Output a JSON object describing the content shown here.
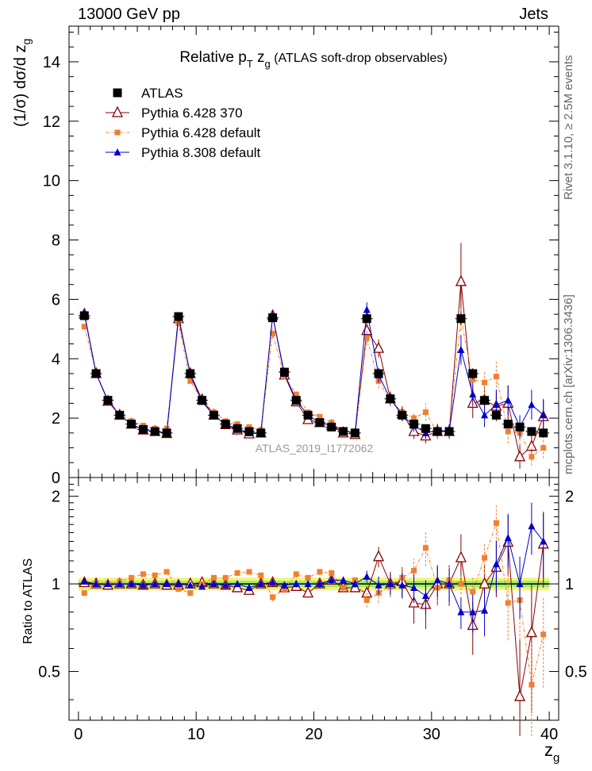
{
  "header": {
    "left": "13000 GeV pp",
    "right": "Jets"
  },
  "side_text": {
    "top": "Rivet 3.1.10, ≥ 2.5M events",
    "bottom": "mcplots.cern.ch [arXiv:1306.3436]"
  },
  "watermark": "ATLAS_2019_I1772062",
  "chart_data": {
    "type": "scatter",
    "title": "Relative p_T z_g (ATLAS soft-drop observables)",
    "title_parts": {
      "main": "Relative p",
      "sub1": "T",
      "mid": " z",
      "sub2": "g",
      "tail": " (ATLAS soft-drop observables)"
    },
    "xlabel": "z_g",
    "xlabel_parts": {
      "main": "z",
      "sub": "g"
    },
    "ylabel": "(1/σ) dσ/d z_g",
    "ylabel_parts": {
      "main": "(1/σ) dσ/d z",
      "sub": "g"
    },
    "ratio_ylabel": "Ratio to ATLAS",
    "xlim": [
      -0.8,
      40.8
    ],
    "ylim": [
      0,
      15.2
    ],
    "ratio_ylim": [
      0.34,
      2.32
    ],
    "x_ticks": [
      "0",
      "10",
      "20",
      "30",
      "40"
    ],
    "y_ticks": [
      "0",
      "2",
      "4",
      "6",
      "8",
      "10",
      "12",
      "14"
    ],
    "ratio_ticks": [
      "0.5",
      "1",
      "2"
    ],
    "x": [
      0.5,
      1.5,
      2.5,
      3.5,
      4.5,
      5.5,
      6.5,
      7.5,
      8.5,
      9.5,
      10.5,
      11.5,
      12.5,
      13.5,
      14.5,
      15.5,
      16.5,
      17.5,
      18.5,
      19.5,
      20.5,
      21.5,
      22.5,
      23.5,
      24.5,
      25.5,
      26.5,
      27.5,
      28.5,
      29.5,
      30.5,
      31.5,
      32.5,
      33.5,
      34.5,
      35.5,
      36.5,
      37.5,
      38.5,
      39.5
    ],
    "series": [
      {
        "name": "ATLAS",
        "color": "#000000",
        "marker": "square",
        "values": [
          5.45,
          3.5,
          2.6,
          2.1,
          1.8,
          1.62,
          1.55,
          1.5,
          5.42,
          3.5,
          2.6,
          2.1,
          1.8,
          1.65,
          1.55,
          1.5,
          5.38,
          3.55,
          2.6,
          2.1,
          1.85,
          1.7,
          1.55,
          1.5,
          5.35,
          3.5,
          2.65,
          2.1,
          1.8,
          1.65,
          1.55,
          1.55,
          5.35,
          3.5,
          2.6,
          2.1,
          1.8,
          1.7,
          1.55,
          1.5
        ],
        "errors": [
          0.05,
          0.05,
          0.04,
          0.04,
          0.04,
          0.04,
          0.04,
          0.04,
          0.06,
          0.05,
          0.05,
          0.04,
          0.04,
          0.04,
          0.04,
          0.04,
          0.08,
          0.06,
          0.05,
          0.05,
          0.05,
          0.05,
          0.05,
          0.05,
          0.12,
          0.1,
          0.08,
          0.08,
          0.08,
          0.08,
          0.08,
          0.08,
          0.2,
          0.18,
          0.15,
          0.15,
          0.15,
          0.15,
          0.15,
          0.15
        ]
      },
      {
        "name": "Pythia 6.428 370",
        "color": "#8b0000",
        "marker": "open-triangle",
        "values": [
          5.5,
          3.5,
          2.57,
          2.1,
          1.8,
          1.6,
          1.55,
          1.48,
          5.35,
          3.5,
          2.62,
          2.1,
          1.78,
          1.6,
          1.47,
          1.5,
          5.45,
          3.45,
          2.55,
          1.95,
          1.85,
          1.75,
          1.5,
          1.45,
          4.95,
          4.35,
          2.65,
          2.15,
          1.55,
          1.4,
          1.55,
          1.55,
          6.6,
          2.5,
          2.6,
          2.4,
          2.5,
          0.7,
          1.05,
          2.05
        ],
        "errors": [
          0.04,
          0.04,
          0.04,
          0.04,
          0.04,
          0.04,
          0.04,
          0.04,
          0.08,
          0.06,
          0.05,
          0.05,
          0.05,
          0.05,
          0.05,
          0.05,
          0.15,
          0.1,
          0.1,
          0.08,
          0.08,
          0.08,
          0.08,
          0.08,
          0.25,
          0.3,
          0.25,
          0.25,
          0.25,
          0.25,
          0.25,
          0.25,
          1.3,
          0.5,
          0.45,
          0.5,
          0.6,
          0.4,
          0.5,
          0.6
        ]
      },
      {
        "name": "Pythia 6.428 default",
        "color": "#f08030",
        "marker": "square",
        "values": [
          5.08,
          3.52,
          2.6,
          2.15,
          1.9,
          1.75,
          1.65,
          1.65,
          5.2,
          3.25,
          2.6,
          2.2,
          1.9,
          1.8,
          1.7,
          1.6,
          4.85,
          3.4,
          2.8,
          2.2,
          2.05,
          1.85,
          1.5,
          1.55,
          4.7,
          3.25,
          2.6,
          2.2,
          2.0,
          2.2,
          1.5,
          1.6,
          5.35,
          3.3,
          3.2,
          3.4,
          1.55,
          1.5,
          0.7,
          1.0
        ],
        "errors": [
          0.04,
          0.04,
          0.04,
          0.04,
          0.04,
          0.04,
          0.04,
          0.04,
          0.08,
          0.06,
          0.05,
          0.05,
          0.05,
          0.05,
          0.05,
          0.05,
          0.15,
          0.1,
          0.1,
          0.08,
          0.08,
          0.08,
          0.08,
          0.08,
          0.25,
          0.25,
          0.2,
          0.2,
          0.2,
          0.3,
          0.2,
          0.2,
          0.4,
          0.4,
          0.4,
          0.5,
          0.4,
          0.4,
          0.3,
          0.35
        ]
      },
      {
        "name": "Pythia 8.308 default",
        "color": "#0000cc",
        "marker": "filled-triangle",
        "values": [
          5.55,
          3.5,
          2.6,
          2.1,
          1.8,
          1.6,
          1.55,
          1.5,
          5.45,
          3.45,
          2.55,
          2.1,
          1.78,
          1.65,
          1.5,
          1.5,
          5.45,
          3.5,
          2.6,
          2.1,
          1.85,
          1.75,
          1.6,
          1.5,
          5.65,
          3.45,
          2.65,
          2.1,
          1.75,
          1.5,
          1.6,
          1.55,
          4.3,
          2.8,
          2.1,
          2.45,
          2.6,
          1.7,
          2.45,
          2.1
        ],
        "errors": [
          0.04,
          0.04,
          0.04,
          0.04,
          0.04,
          0.04,
          0.04,
          0.04,
          0.08,
          0.06,
          0.05,
          0.05,
          0.05,
          0.05,
          0.05,
          0.05,
          0.15,
          0.1,
          0.1,
          0.08,
          0.08,
          0.08,
          0.08,
          0.08,
          0.25,
          0.25,
          0.2,
          0.2,
          0.2,
          0.2,
          0.2,
          0.2,
          0.5,
          0.4,
          0.4,
          0.5,
          0.5,
          0.4,
          0.5,
          0.5
        ]
      }
    ],
    "ratio": {
      "band_inner": 0.025,
      "band_outer": 0.05,
      "series": [
        {
          "name": "Pythia 6.428 370",
          "values": [
            1.01,
            1.0,
            0.99,
            1.0,
            1.0,
            0.99,
            1.0,
            0.99,
            0.99,
            1.0,
            1.01,
            1.0,
            0.99,
            0.97,
            0.95,
            1.0,
            1.01,
            0.97,
            0.98,
            0.93,
            1.0,
            1.03,
            0.97,
            0.97,
            0.93,
            1.24,
            1.0,
            1.02,
            0.86,
            0.85,
            1.0,
            1.0,
            1.23,
            0.72,
            1.0,
            1.14,
            1.39,
            0.41,
            0.68,
            1.37
          ],
          "errors": [
            0.01,
            0.01,
            0.01,
            0.01,
            0.01,
            0.01,
            0.01,
            0.01,
            0.02,
            0.02,
            0.02,
            0.02,
            0.02,
            0.02,
            0.02,
            0.02,
            0.03,
            0.03,
            0.03,
            0.03,
            0.03,
            0.03,
            0.03,
            0.03,
            0.05,
            0.1,
            0.1,
            0.12,
            0.13,
            0.15,
            0.15,
            0.16,
            0.25,
            0.15,
            0.17,
            0.24,
            0.33,
            0.24,
            0.32,
            0.4
          ]
        },
        {
          "name": "Pythia 6.428 default",
          "values": [
            0.93,
            1.0,
            1.0,
            1.02,
            1.05,
            1.08,
            1.07,
            1.1,
            0.96,
            0.93,
            1.0,
            1.05,
            1.05,
            1.09,
            1.1,
            1.07,
            0.9,
            0.96,
            1.08,
            1.05,
            1.1,
            1.09,
            0.97,
            1.03,
            0.88,
            0.93,
            0.98,
            1.05,
            1.11,
            1.33,
            0.97,
            1.03,
            1.0,
            0.94,
            1.23,
            1.62,
            0.86,
            0.88,
            0.45,
            0.67
          ],
          "errors": [
            0.01,
            0.01,
            0.01,
            0.01,
            0.01,
            0.01,
            0.01,
            0.01,
            0.02,
            0.02,
            0.02,
            0.02,
            0.02,
            0.02,
            0.02,
            0.02,
            0.03,
            0.03,
            0.03,
            0.03,
            0.03,
            0.03,
            0.03,
            0.03,
            0.05,
            0.07,
            0.08,
            0.1,
            0.11,
            0.18,
            0.13,
            0.13,
            0.08,
            0.11,
            0.15,
            0.24,
            0.22,
            0.24,
            0.19,
            0.23
          ]
        },
        {
          "name": "Pythia 8.308 default",
          "values": [
            1.02,
            1.0,
            1.0,
            1.0,
            1.0,
            0.99,
            1.0,
            1.0,
            1.0,
            0.99,
            0.98,
            1.0,
            0.99,
            1.0,
            0.97,
            1.0,
            1.01,
            0.99,
            1.0,
            1.0,
            1.0,
            1.03,
            1.03,
            1.0,
            1.06,
            0.99,
            1.0,
            0.99,
            0.97,
            0.91,
            1.03,
            1.0,
            0.8,
            0.8,
            0.81,
            1.17,
            1.44,
            1.0,
            1.58,
            1.4
          ],
          "errors": [
            0.01,
            0.01,
            0.01,
            0.01,
            0.01,
            0.01,
            0.01,
            0.01,
            0.02,
            0.02,
            0.02,
            0.02,
            0.02,
            0.02,
            0.02,
            0.02,
            0.03,
            0.03,
            0.03,
            0.03,
            0.03,
            0.03,
            0.03,
            0.03,
            0.05,
            0.07,
            0.08,
            0.1,
            0.11,
            0.12,
            0.13,
            0.13,
            0.1,
            0.12,
            0.15,
            0.24,
            0.3,
            0.24,
            0.32,
            0.35
          ]
        }
      ]
    },
    "legend": {
      "placement": "top-left"
    }
  }
}
